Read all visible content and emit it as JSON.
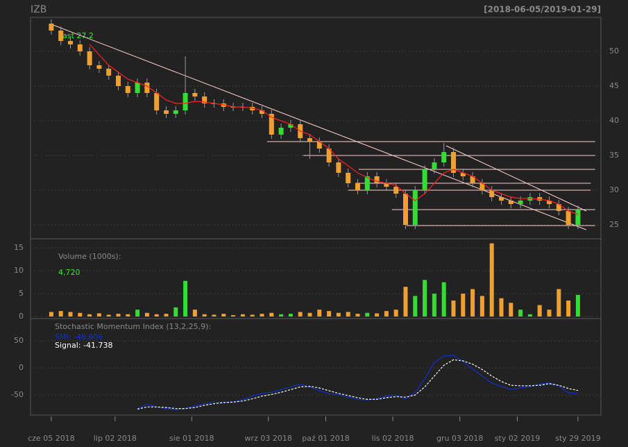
{
  "chart_data": [
    {
      "type": "candlestick",
      "title": "IZB",
      "subtitle": "[2018-06-05/2019-01-29]",
      "annotation": "Last 27.2",
      "x": [
        0,
        3,
        6,
        9,
        12,
        15,
        18,
        21,
        24,
        27,
        30,
        33,
        36,
        39,
        42,
        45,
        48,
        51,
        54,
        57,
        60,
        63,
        66,
        69,
        72,
        75,
        78,
        81,
        84,
        87,
        90,
        93,
        96,
        99,
        102,
        105,
        108,
        111,
        114,
        117,
        120,
        123,
        126,
        129,
        132,
        135,
        138,
        141,
        144,
        147,
        150,
        153,
        156,
        159,
        162,
        165
      ],
      "open": [
        54,
        53,
        51.5,
        51,
        50,
        48,
        47.5,
        46.5,
        45,
        44,
        45.5,
        44,
        41.5,
        41,
        41.5,
        44,
        43.5,
        42.5,
        42.5,
        42,
        42,
        42,
        41.5,
        41,
        38,
        39,
        39.5,
        37.5,
        37,
        36,
        34,
        32.5,
        31,
        30,
        32,
        31,
        30.5,
        29.5,
        25,
        30,
        33,
        34,
        35.5,
        32.5,
        32,
        31,
        30,
        29,
        28.5,
        28,
        28.5,
        29,
        28.5,
        28,
        27,
        25
      ],
      "high": [
        54.6,
        53.6,
        52.1,
        51.6,
        50.6,
        48.6,
        48.1,
        47.1,
        45.6,
        46.1,
        46.1,
        44.6,
        42.1,
        42.1,
        49.3,
        44.6,
        44.1,
        43.1,
        43.1,
        42.6,
        42.6,
        42.6,
        42.1,
        41.6,
        39.6,
        40.1,
        40.1,
        38.1,
        37.6,
        36.6,
        34.6,
        33.1,
        31.6,
        32.6,
        32.6,
        31.6,
        31.1,
        30.1,
        30.6,
        33.6,
        34.6,
        36.8,
        36.1,
        33.1,
        32.6,
        31.6,
        30.6,
        29.6,
        29.1,
        29.1,
        29.6,
        29.6,
        29.1,
        28.6,
        27.6,
        27.8
      ],
      "low": [
        52.4,
        50.9,
        50.4,
        49.4,
        47.4,
        46.9,
        45.9,
        44.4,
        43.4,
        43.4,
        43.4,
        40.9,
        40.4,
        40.4,
        40.9,
        42.9,
        41.9,
        41.9,
        41.4,
        41.4,
        41.4,
        40.9,
        40.4,
        37.4,
        37.4,
        38.4,
        36.9,
        34.5,
        35.4,
        33.4,
        31.9,
        30.4,
        29.4,
        29.4,
        30.4,
        29.9,
        28.9,
        24.4,
        24.4,
        29.4,
        32.4,
        33.4,
        31.9,
        31.4,
        30.4,
        29.4,
        28.4,
        27.9,
        27.4,
        27.4,
        27.9,
        27.9,
        27.4,
        26.4,
        24.4,
        24.4
      ],
      "close": [
        53,
        51.5,
        51,
        50,
        48,
        47.5,
        46.5,
        45,
        44,
        45.5,
        44,
        41.5,
        41,
        41.5,
        44,
        43.5,
        42.5,
        42.5,
        42,
        42,
        42,
        41.5,
        41,
        38,
        39,
        39.5,
        37.5,
        37,
        36,
        34,
        32.5,
        31,
        30,
        32,
        31,
        30.5,
        29.5,
        25,
        30,
        33,
        34,
        35.5,
        32.5,
        32,
        31,
        30,
        29,
        28.5,
        28,
        28.5,
        29,
        28.5,
        28,
        27,
        25,
        27.2
      ],
      "up_color": "#33dd33",
      "down_color": "#f0a030",
      "ma": {
        "color": "#ff2020",
        "values": [
          null,
          null,
          null,
          null,
          51,
          49.5,
          48,
          47,
          46,
          45.5,
          45,
          44,
          43,
          42.5,
          42.5,
          42.8,
          42.7,
          42.5,
          42.3,
          42,
          42,
          41.8,
          41.5,
          40.5,
          40,
          39.5,
          38.5,
          38,
          37,
          36,
          34.5,
          33.5,
          32.5,
          31.8,
          31.3,
          31,
          30.7,
          29.5,
          28.5,
          29.5,
          31,
          32.5,
          33,
          32.5,
          32,
          31,
          30,
          29.5,
          29,
          28.8,
          28.8,
          28.7,
          28.5,
          28,
          27,
          26.5
        ]
      },
      "line_color": "#ffd0d0",
      "lines": [
        {
          "x": [
            0,
            167.6
          ],
          "y": [
            53.9,
            24.3
          ]
        },
        {
          "x": [
            123.7,
            167.6
          ],
          "y": [
            36.4,
            27
          ]
        },
        {
          "x": [
            67.6,
            170.4
          ],
          "y": [
            37,
            37
          ]
        },
        {
          "x": [
            78.9,
            170.4
          ],
          "y": [
            35,
            35
          ]
        },
        {
          "x": [
            96.3,
            170.4
          ],
          "y": [
            33,
            33
          ]
        },
        {
          "x": [
            95.4,
            169
          ],
          "y": [
            31,
            31
          ]
        },
        {
          "x": [
            93,
            169
          ],
          "y": [
            30,
            30
          ]
        },
        {
          "x": [
            106.7,
            170.4
          ],
          "y": [
            27.2,
            27.2
          ]
        },
        {
          "x": [
            111.3,
            170.4
          ],
          "y": [
            24.9,
            24.9
          ]
        }
      ],
      "xlim": [
        -6.5,
        172.2
      ],
      "ylim": [
        23,
        54.9
      ],
      "yticks": [
        25,
        30,
        35,
        40,
        45,
        50
      ],
      "grid": true
    },
    {
      "type": "bar",
      "title": "Volume (1000s):",
      "annotation": "4,720",
      "values": [
        1,
        1.2,
        1,
        0.8,
        0.5,
        0.7,
        0.4,
        0.6,
        0.5,
        1.5,
        0.8,
        0.5,
        0.6,
        2,
        7.8,
        1.5,
        0.5,
        0.4,
        0.6,
        0.3,
        0.5,
        0.4,
        0.6,
        0.8,
        0.5,
        0.6,
        1,
        0.8,
        1.5,
        1.2,
        0.8,
        1,
        0.6,
        0.8,
        0.7,
        1.2,
        1.5,
        6.5,
        4.5,
        8,
        5,
        7.5,
        3.5,
        5,
        6,
        4.5,
        16,
        4,
        3,
        1.5,
        0.5,
        2.5,
        1.5,
        6,
        3.5,
        4.72
      ],
      "ylim": [
        -0.45,
        17
      ],
      "yticks": [
        0,
        5,
        10,
        15
      ],
      "grid": true
    },
    {
      "type": "line",
      "title": "Stochastic Momentum Index (13,2,25,9):",
      "series": [
        {
          "name": "SMI: -46.606",
          "color": "#1030d0",
          "values": [
            null,
            null,
            null,
            null,
            null,
            null,
            null,
            null,
            null,
            -75,
            -67,
            -72,
            -75,
            -77,
            -75,
            -70,
            -66,
            -63,
            -64,
            -63,
            -58,
            -52,
            -47,
            -45,
            -40,
            -35,
            -30,
            -35,
            -42,
            -47,
            -50,
            -54,
            -58,
            -59,
            -57,
            -52,
            -50,
            -57,
            -45,
            -20,
            10,
            22,
            23,
            12,
            -2,
            -15,
            -28,
            -34,
            -40,
            -37,
            -34,
            -30,
            -28,
            -33,
            -46,
            -46.6
          ]
        },
        {
          "name": "Signal: -41.738",
          "color": "#ffffff",
          "values": [
            null,
            null,
            null,
            null,
            null,
            null,
            null,
            null,
            null,
            -76,
            -72,
            -72,
            -73,
            -75,
            -75,
            -73,
            -69,
            -66,
            -64,
            -63,
            -61,
            -57,
            -52,
            -49,
            -45,
            -40,
            -35,
            -34,
            -37,
            -42,
            -47,
            -51,
            -55,
            -58,
            -58,
            -55,
            -53,
            -54,
            -50,
            -35,
            -15,
            5,
            15,
            13,
            7,
            -3,
            -15,
            -25,
            -32,
            -33,
            -33,
            -32,
            -29,
            -32,
            -38,
            -41.7
          ]
        }
      ],
      "ylim": [
        -87,
        91
      ],
      "yticks": [
        -50,
        0,
        50
      ],
      "grid": true,
      "xticks": [
        {
          "value": 0,
          "label": "cze 05 2018"
        },
        {
          "value": 20,
          "label": "lip 02 2018"
        },
        {
          "value": 44,
          "label": "sie 01 2018"
        },
        {
          "value": 68,
          "label": "wrz 03 2018"
        },
        {
          "value": 86,
          "label": "paź 01 2018"
        },
        {
          "value": 107,
          "label": "lis 02 2018"
        },
        {
          "value": 128,
          "label": "gru 03 2018"
        },
        {
          "value": 146,
          "label": "sty 02 2019"
        },
        {
          "value": 165,
          "label": "sty 29 2019"
        }
      ]
    }
  ]
}
